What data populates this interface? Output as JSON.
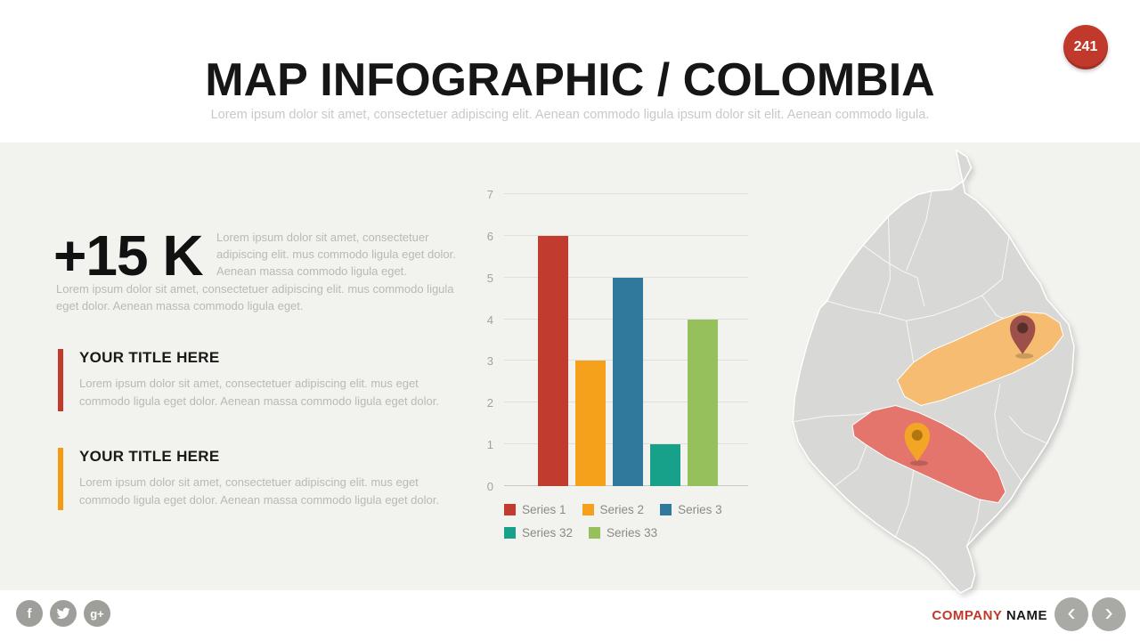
{
  "page": {
    "badge": "241",
    "badge_color": "#c0392b",
    "title": "MAP INFOGRAPHIC / COLOMBIA",
    "subtitle": "Lorem ipsum dolor sit amet, consectetuer adipiscing elit. Aenean commodo ligula ipsum dolor sit elit. Aenean commodo ligula."
  },
  "stats": {
    "big_number": "+15 K",
    "side_text": "Lorem ipsum dolor sit amet, consectetuer adipiscing elit. mus commodo ligula eget dolor. Aenean massa commodo ligula eget.",
    "below_text": "Lorem ipsum dolor sit amet, consectetuer adipiscing elit. mus commodo ligula eget dolor. Aenean massa commodo ligula eget."
  },
  "sections": [
    {
      "title": "YOUR TITLE HERE",
      "accent": "#c0392b",
      "text": "Lorem ipsum dolor sit amet, consectetuer adipiscing elit. mus eget commodo ligula eget dolor. Aenean massa commodo ligula eget dolor."
    },
    {
      "title": "YOUR TITLE HERE",
      "accent": "#f39c12",
      "text": "Lorem ipsum dolor sit amet, consectetuer adipiscing elit. mus eget commodo ligula eget dolor. Aenean massa commodo ligula eget dolor."
    }
  ],
  "chart_data": {
    "type": "bar",
    "title": "",
    "xlabel": "",
    "ylabel": "",
    "ylim": [
      0,
      7
    ],
    "yticks": [
      0,
      1,
      2,
      3,
      4,
      5,
      6,
      7
    ],
    "grid": true,
    "legend_position": "bottom",
    "series": [
      {
        "name": "Series 1",
        "value": 6,
        "color": "#c13b2e"
      },
      {
        "name": "Series 2",
        "value": 3,
        "color": "#f5a11c"
      },
      {
        "name": "Series 3",
        "value": 5,
        "color": "#31789d"
      },
      {
        "name": "Series 32",
        "value": 1,
        "color": "#17a08a"
      },
      {
        "name": "Series 33",
        "value": 4,
        "color": "#95c05b"
      }
    ]
  },
  "map": {
    "country": "Colombia",
    "base_color": "#d8d8d6",
    "border_color": "#ffffff",
    "regions": [
      {
        "name": "east-band",
        "color": "#f6bd72"
      },
      {
        "name": "south-region",
        "color": "#e4756c"
      }
    ],
    "pins": [
      {
        "name": "east-pin",
        "body_color": "#9c5049",
        "hole_color": "#57302c"
      },
      {
        "name": "south-pin",
        "body_color": "#f3a526",
        "hole_color": "#b0770f"
      }
    ]
  },
  "footer": {
    "company_accent": "COMPANY ",
    "company_rest": "NAME",
    "social": [
      {
        "name": "facebook",
        "glyph": "f"
      },
      {
        "name": "twitter",
        "glyph": ""
      },
      {
        "name": "google-plus",
        "glyph": "g+"
      }
    ],
    "nav_prev": "‹",
    "nav_next": "›"
  }
}
